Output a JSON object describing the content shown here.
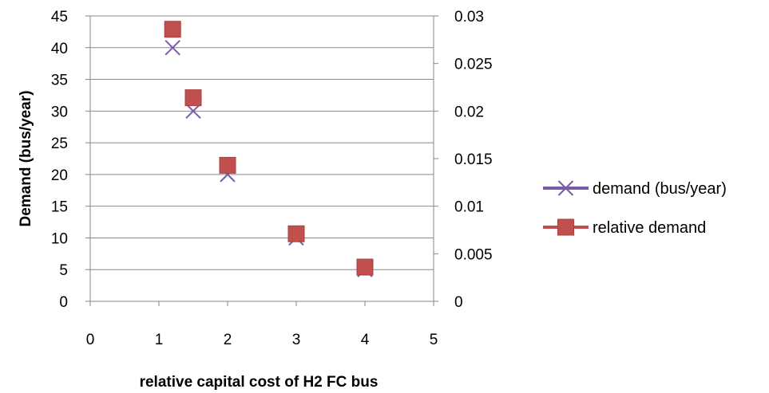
{
  "chart_data": {
    "type": "scatter",
    "xlabel": "relative capital  cost  of H2  FC bus",
    "ylabel": "Demand (bus/year)",
    "y2label": "",
    "xlim": [
      0,
      5
    ],
    "ylim": [
      0,
      45
    ],
    "y2lim": [
      0,
      0.03
    ],
    "x_ticks": [
      "0",
      "1",
      "2",
      "3",
      "4",
      "5"
    ],
    "y_ticks": [
      "0",
      "5",
      "10",
      "15",
      "20",
      "25",
      "30",
      "35",
      "40",
      "45"
    ],
    "y2_ticks": [
      "0",
      "0.005",
      "0.01",
      "0.015",
      "0.02",
      "0.025",
      "0.03"
    ],
    "grid": "horizontal",
    "legend_position": "right",
    "series": [
      {
        "name": "demand (bus/year)",
        "axis": "left",
        "marker": "x",
        "color": "#7B5BA7",
        "x": [
          1.2,
          1.5,
          2,
          3,
          4
        ],
        "y": [
          40,
          30,
          20,
          10,
          5
        ]
      },
      {
        "name": "relative demand",
        "axis": "right",
        "marker": "square",
        "color": "#C0504D",
        "x": [
          1.2,
          1.5,
          2,
          3,
          4
        ],
        "y": [
          0.0286,
          0.0214,
          0.0143,
          0.0071,
          0.0036
        ]
      }
    ]
  }
}
